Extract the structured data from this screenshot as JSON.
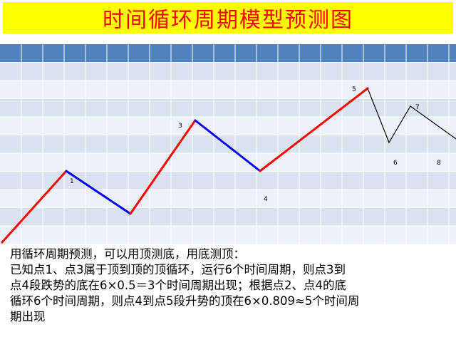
{
  "title": "时间循环周期模型预测图",
  "colors": {
    "title_bg": "#ffff00",
    "title_text": "#ff0000",
    "grid_header": "#4f81bd",
    "grid_band_dark": "#d9e2ef",
    "grid_band_light": "#edf1f8",
    "rise_line": "#ff0000",
    "fall_line": "#0000ff",
    "forecast_line": "#000000"
  },
  "point_labels": {
    "p1": "1",
    "p3": "3",
    "p4": "4",
    "p5": "5",
    "p6": "6",
    "p7": "7",
    "p8": "8"
  },
  "description": {
    "line1": "用循环周期预测，可以用顶测底，用底测顶：",
    "line2": "已知点1、点3属于顶到顶的顶循环，运行6个时间周期，则点3到",
    "line3": "点4段跌势的底在6×0.5＝3个时间周期出现；根据点2、点4的底",
    "line4": "循环6个时间周期，则点4到点5段升势的顶在6×0.809≈5个时间周",
    "line5": "期出现"
  }
}
